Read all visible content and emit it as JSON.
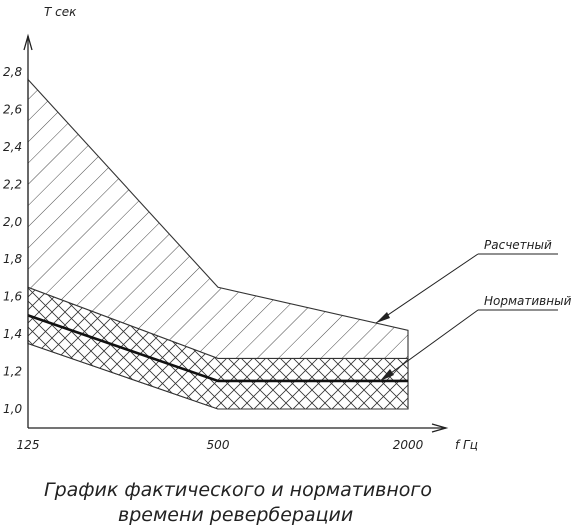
{
  "chart_data": {
    "type": "area",
    "x_scale": "log2",
    "x_unit_label": "f Гц",
    "y_unit_label": "T сек",
    "x_ticks": [
      "125",
      "500",
      "2000"
    ],
    "y_ticks": [
      "1,0",
      "1,2",
      "1,4",
      "1,6",
      "1,8",
      "2,0",
      "2,2",
      "2,4",
      "2,6",
      "2,8"
    ],
    "ylim": [
      0.9,
      3.0
    ],
    "grid": false,
    "title_lines": [
      "График фактического и нормативного",
      "времени реверберации"
    ],
    "series": [
      {
        "name": "Расчетный",
        "kind": "band",
        "hatch": "single-diagonal",
        "x": [
          125,
          500,
          2000
        ],
        "upper": [
          2.76,
          1.65,
          1.42
        ],
        "lower": [
          1.35,
          1.0,
          1.0
        ]
      },
      {
        "name": "Нормативный",
        "kind": "band",
        "hatch": "cross",
        "x": [
          125,
          500,
          2000
        ],
        "upper": [
          1.65,
          1.27,
          1.27
        ],
        "lower": [
          1.35,
          1.0,
          1.0
        ]
      },
      {
        "kind": "line",
        "x": [
          125,
          500,
          2000
        ],
        "values": [
          1.5,
          1.15,
          1.15
        ]
      }
    ]
  }
}
